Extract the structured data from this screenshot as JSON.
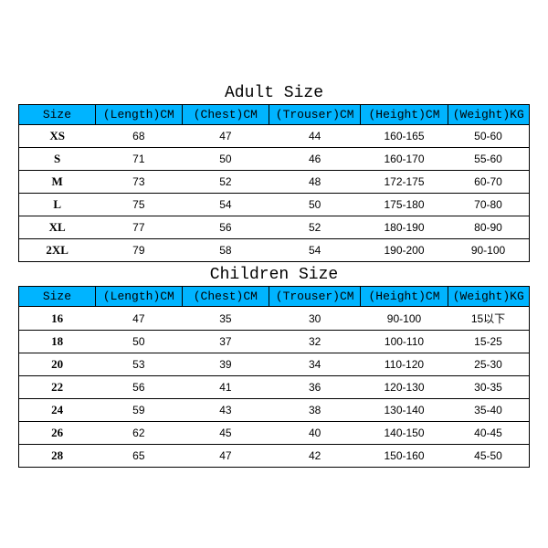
{
  "adult": {
    "title": "Adult Size",
    "columns": [
      "Size",
      "(Length)CM",
      "(Chest)CM",
      "(Trouser)CM",
      "(Height)CM",
      "(Weight)KG"
    ],
    "rows": [
      [
        "XS",
        "68",
        "47",
        "44",
        "160-165",
        "50-60"
      ],
      [
        "S",
        "71",
        "50",
        "46",
        "160-170",
        "55-60"
      ],
      [
        "M",
        "73",
        "52",
        "48",
        "172-175",
        "60-70"
      ],
      [
        "L",
        "75",
        "54",
        "50",
        "175-180",
        "70-80"
      ],
      [
        "XL",
        "77",
        "56",
        "52",
        "180-190",
        "80-90"
      ],
      [
        "2XL",
        "79",
        "58",
        "54",
        "190-200",
        "90-100"
      ]
    ]
  },
  "children": {
    "title": "Children Size",
    "columns": [
      "Size",
      "(Length)CM",
      "(Chest)CM",
      "(Trouser)CM",
      "(Height)CM",
      "(Weight)KG"
    ],
    "rows": [
      [
        "16",
        "47",
        "35",
        "30",
        "90-100",
        "15以下"
      ],
      [
        "18",
        "50",
        "37",
        "32",
        "100-110",
        "15-25"
      ],
      [
        "20",
        "53",
        "39",
        "34",
        "110-120",
        "25-30"
      ],
      [
        "22",
        "56",
        "41",
        "36",
        "120-130",
        "30-35"
      ],
      [
        "24",
        "59",
        "43",
        "38",
        "130-140",
        "35-40"
      ],
      [
        "26",
        "62",
        "45",
        "40",
        "140-150",
        "40-45"
      ],
      [
        "28",
        "65",
        "47",
        "42",
        "150-160",
        "45-50"
      ]
    ]
  },
  "styling": {
    "header_bg": "#00b4ff",
    "border_color": "#000000",
    "background": "#ffffff",
    "title_fontsize": 18,
    "header_fontsize": 13,
    "cell_fontsize": 12,
    "header_font": "Courier New",
    "title_font": "Courier New",
    "col_widths_pct": [
      15,
      17,
      17,
      18,
      17,
      16
    ]
  }
}
